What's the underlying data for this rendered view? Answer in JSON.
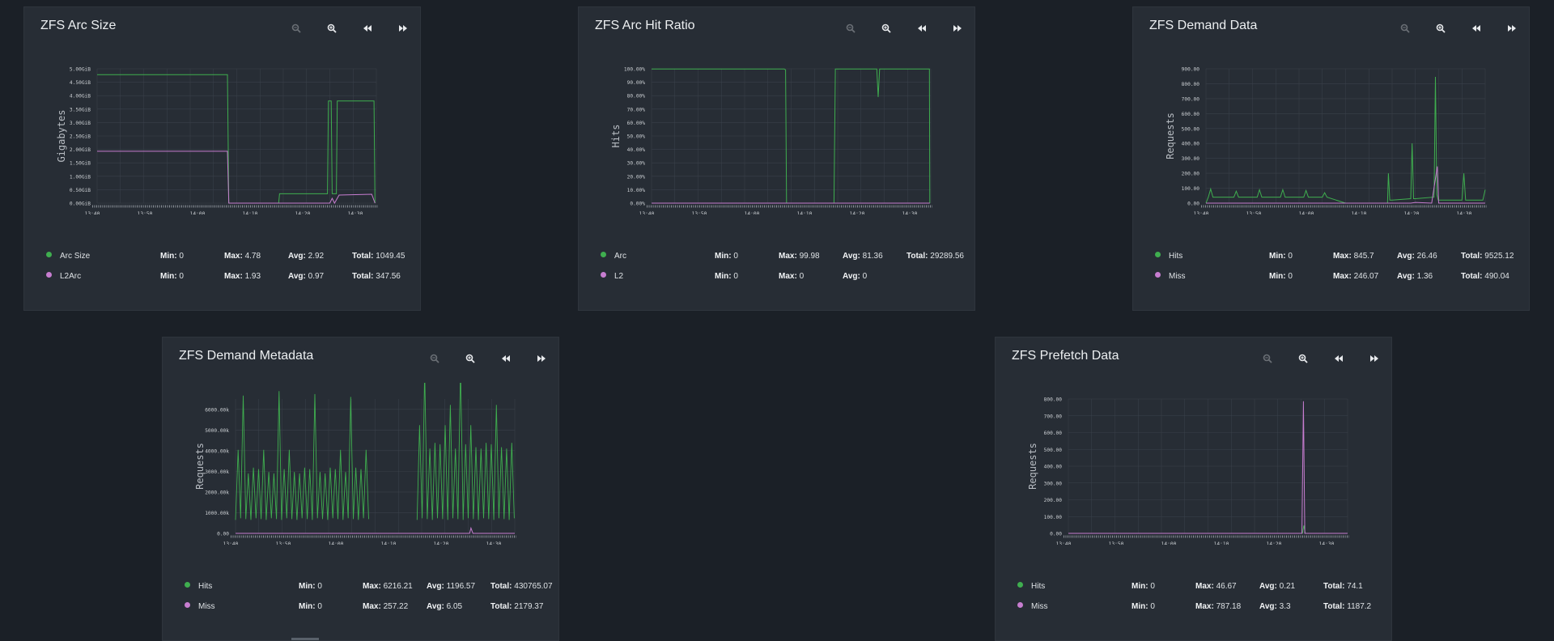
{
  "colors": {
    "background": "#1b2027",
    "card": "#272d35",
    "grid": "#3a414a",
    "axis": "#8a9097",
    "series_green": "#3fae4f",
    "series_purple": "#c77dd0"
  },
  "toolbar": {
    "icons": [
      "zoom-out-icon",
      "zoom-in-icon",
      "rewind-icon",
      "fast-forward-icon"
    ]
  },
  "panels": [
    {
      "title": "ZFS Arc Size",
      "legend": [
        {
          "name": "Arc Size",
          "min": "0",
          "max": "4.78",
          "avg": "2.92",
          "total": "1049.45"
        },
        {
          "name": "L2Arc",
          "min": "0",
          "max": "1.93",
          "avg": "0.97",
          "total": "347.56"
        }
      ]
    },
    {
      "title": "ZFS Arc Hit Ratio",
      "legend": [
        {
          "name": "Arc",
          "min": "0",
          "max": "99.98",
          "avg": "81.36",
          "total": "29289.56"
        },
        {
          "name": "L2",
          "min": "0",
          "max": "0",
          "avg": "0",
          "total": ""
        }
      ]
    },
    {
      "title": "ZFS Demand Data",
      "legend": [
        {
          "name": "Hits",
          "min": "0",
          "max": "845.7",
          "avg": "26.46",
          "total": "9525.12"
        },
        {
          "name": "Miss",
          "min": "0",
          "max": "246.07",
          "avg": "1.36",
          "total": "490.04"
        }
      ]
    },
    {
      "title": "ZFS Demand Metadata",
      "legend": [
        {
          "name": "Hits",
          "min": "0",
          "max": "6216.21",
          "avg": "1196.57",
          "total": "430765.07"
        },
        {
          "name": "Miss",
          "min": "0",
          "max": "257.22",
          "avg": "6.05",
          "total": "2179.37"
        }
      ]
    },
    {
      "title": "ZFS Prefetch Data",
      "legend": [
        {
          "name": "Hits",
          "min": "0",
          "max": "46.67",
          "avg": "0.21",
          "total": "74.1"
        },
        {
          "name": "Miss",
          "min": "0",
          "max": "787.18",
          "avg": "3.3",
          "total": "1187.2"
        }
      ]
    }
  ],
  "legend_labels": {
    "min": "Min:",
    "max": "Max:",
    "avg": "Avg:",
    "total": "Total:"
  },
  "chart_data": [
    {
      "type": "line",
      "ylabel": "Gigabytes",
      "x_ticks": [
        "13:40",
        "13:50",
        "14:00",
        "14:10",
        "14:20",
        "14:30"
      ],
      "y_ticks": [
        "0.00GiB",
        "0.50GiB",
        "1.00GiB",
        "1.50GiB",
        "2.00GiB",
        "2.50GiB",
        "3.00GiB",
        "3.50GiB",
        "4.00GiB",
        "4.50GiB",
        "5.00GiB"
      ],
      "ylim": [
        0,
        5
      ],
      "series": [
        {
          "name": "Arc Size",
          "x": [
            0,
            28,
            28.3,
            39,
            39.2,
            49.5,
            49.7,
            50.3,
            50.5,
            51.4,
            51.6,
            59.5,
            59.7
          ],
          "values": [
            4.78,
            4.78,
            0,
            0,
            0.35,
            0.35,
            3.8,
            3.8,
            0.35,
            0.35,
            3.8,
            3.8,
            0
          ]
        },
        {
          "name": "L2Arc",
          "x": [
            0,
            28,
            28.3,
            50,
            50.5,
            51,
            52,
            59,
            59.7
          ],
          "values": [
            1.93,
            1.93,
            0,
            0,
            0.18,
            0,
            0.3,
            0.33,
            0
          ]
        }
      ]
    },
    {
      "type": "line",
      "ylabel": "Hits",
      "x_ticks": [
        "13:40",
        "13:50",
        "14:00",
        "14:10",
        "14:20",
        "14:30"
      ],
      "y_ticks": [
        "0.00%",
        "10.00%",
        "20.00%",
        "30.00%",
        "40.00%",
        "50.00%",
        "60.00%",
        "70.00%",
        "80.00%",
        "90.00%",
        "100.00%"
      ],
      "ylim": [
        0,
        100
      ],
      "series": [
        {
          "name": "Arc",
          "x": [
            0,
            28.5,
            28.8,
            29,
            39.2,
            39.5,
            48.4,
            48.7,
            49,
            59.7,
            59.8
          ],
          "values": [
            99.9,
            99.9,
            99.2,
            0,
            0,
            99.9,
            99.9,
            79,
            99.9,
            99.9,
            0
          ]
        },
        {
          "name": "L2",
          "x": [
            0,
            59.8
          ],
          "values": [
            0,
            0
          ]
        }
      ]
    },
    {
      "type": "line",
      "ylabel": "Requests",
      "x_ticks": [
        "13:40",
        "13:50",
        "14:00",
        "14:10",
        "14:20",
        "14:30"
      ],
      "y_ticks": [
        "0.00",
        "100.00",
        "200.00",
        "300.00",
        "400.00",
        "500.00",
        "600.00",
        "700.00",
        "800.00",
        "900.00"
      ],
      "ylim": [
        0,
        900
      ],
      "series": [
        {
          "name": "Hits",
          "x": [
            0,
            0.5,
            1,
            1.5,
            6,
            6.5,
            7,
            11,
            11.5,
            12,
            16,
            16.5,
            17,
            21,
            21.5,
            22,
            25,
            25.5,
            26,
            30,
            39,
            39.2,
            39.5,
            40,
            44,
            44.3,
            44.6,
            45,
            49,
            49.3,
            49.6,
            49.9,
            50.2,
            50.5,
            55,
            55.4,
            55.8,
            58,
            59.5,
            60
          ],
          "values": [
            0,
            40,
            95,
            40,
            40,
            80,
            40,
            40,
            90,
            40,
            40,
            90,
            40,
            40,
            85,
            40,
            40,
            70,
            40,
            0,
            0,
            200,
            20,
            20,
            30,
            400,
            30,
            30,
            40,
            845.7,
            60,
            20,
            20,
            20,
            20,
            200,
            20,
            20,
            20,
            90
          ]
        },
        {
          "name": "Miss",
          "x": [
            0,
            30,
            44,
            45,
            48.5,
            49.7,
            50,
            51,
            60
          ],
          "values": [
            0,
            0,
            0,
            5,
            0,
            246.07,
            0,
            0,
            0
          ]
        }
      ]
    },
    {
      "type": "line",
      "ylabel": "Requests",
      "x_ticks": [
        "13:40",
        "13:50",
        "14:00",
        "14:10",
        "14:20",
        "14:30"
      ],
      "y_ticks": [
        "0.00",
        "1000.00k",
        "2000.00k",
        "3000.00k",
        "4000.00k",
        "5000.00k",
        "6000.00k"
      ],
      "ylim": [
        0,
        6500
      ],
      "series": [
        {
          "name": "Hits",
          "spiky": true,
          "segments": [
            [
              0,
              29
            ],
            [
              39,
              60
            ]
          ],
          "base": 650,
          "values_note": "periodic spikes up to 6216.21"
        },
        {
          "name": "Miss",
          "x": [
            0,
            29,
            39,
            50.3,
            50.6,
            51,
            60
          ],
          "values": [
            0,
            0,
            0,
            0,
            257.22,
            0,
            0
          ]
        }
      ]
    },
    {
      "type": "line",
      "ylabel": "Requests",
      "x_ticks": [
        "13:40",
        "13:50",
        "14:00",
        "14:10",
        "14:20",
        "14:30"
      ],
      "y_ticks": [
        "0.00",
        "100.00",
        "200.00",
        "300.00",
        "400.00",
        "500.00",
        "600.00",
        "700.00",
        "800.00"
      ],
      "ylim": [
        0,
        800
      ],
      "series": [
        {
          "name": "Hits",
          "x": [
            0,
            29,
            39,
            50.3,
            50.6,
            50.9,
            60
          ],
          "values": [
            0,
            0,
            0,
            0,
            46.67,
            0,
            0
          ]
        },
        {
          "name": "Miss",
          "x": [
            0,
            29,
            39,
            50.2,
            50.5,
            50.8,
            60
          ],
          "values": [
            0,
            0,
            0,
            0,
            787.18,
            0,
            0
          ]
        }
      ]
    }
  ]
}
